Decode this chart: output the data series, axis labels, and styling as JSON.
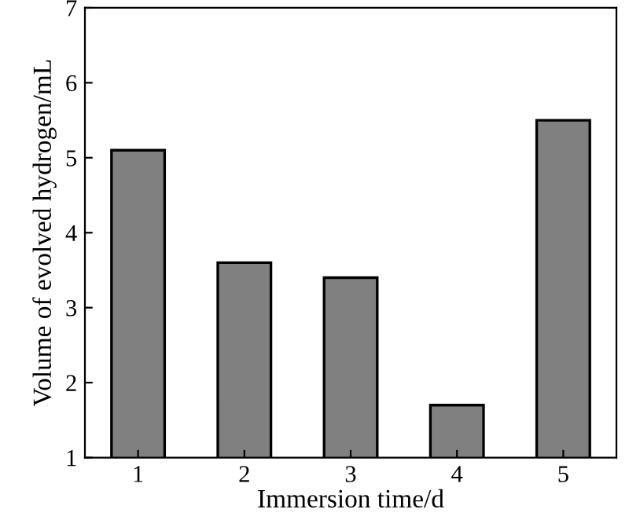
{
  "chart_data": {
    "type": "bar",
    "xlabel": "Immersion time/d",
    "ylabel": "Volume of evolved hydrogen/mL",
    "categories": [
      "1",
      "2",
      "3",
      "4",
      "5"
    ],
    "values": [
      5.1,
      3.6,
      3.4,
      1.7,
      5.5
    ],
    "color": "#808080",
    "ylim": [
      1,
      7
    ],
    "yticks": [
      1,
      2,
      3,
      4,
      5,
      6,
      7
    ],
    "grid": false,
    "legend": false
  }
}
